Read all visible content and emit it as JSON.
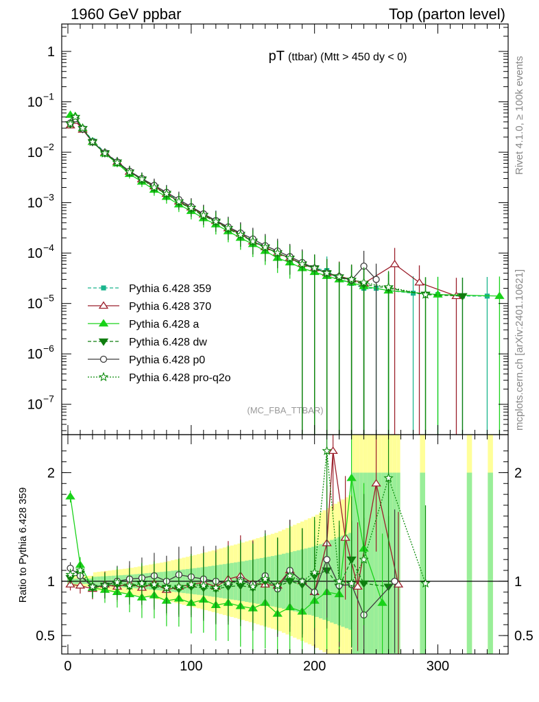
{
  "chart_data": [
    {
      "type": "line",
      "panel": "main",
      "header_left": "1960 GeV ppbar",
      "header_right": "Top (parton level)",
      "title_main": "pT",
      "title_sub": "(ttbar) (Mtt > 450 dy < 0)",
      "watermark": "(MC_FBA_TTBAR)",
      "side_label_top": "Rivet 4.1.0, ≥ 100k events",
      "side_label_bottom": "mcplots.cern.ch [arXiv:2401.10621]",
      "yscale": "log",
      "xlim": [
        -5,
        357
      ],
      "ylim": [
        2.5e-08,
        3.5
      ],
      "yticks": [
        {
          "v": 1e-07,
          "base": "10",
          "exp": "−7"
        },
        {
          "v": 1e-06,
          "base": "10",
          "exp": "−6"
        },
        {
          "v": 1e-05,
          "base": "10",
          "exp": "−5"
        },
        {
          "v": 0.0001,
          "base": "10",
          "exp": "−4"
        },
        {
          "v": 0.001,
          "base": "10",
          "exp": "−3"
        },
        {
          "v": 0.01,
          "base": "10",
          "exp": "−2"
        },
        {
          "v": 0.1,
          "base": "10",
          "exp": "−1"
        },
        {
          "v": 1,
          "base": "1",
          "exp": ""
        }
      ],
      "series": [
        {
          "name": "Pythia 6.428 359",
          "color": "#19b58c",
          "marker": "square",
          "dash": "5,3",
          "x": [
            2,
            6,
            12,
            20,
            30,
            40,
            50,
            60,
            70,
            80,
            90,
            100,
            110,
            120,
            130,
            140,
            150,
            160,
            170,
            180,
            190,
            200,
            210,
            220,
            230,
            240,
            250,
            260,
            280,
            300,
            320,
            340
          ],
          "y": [
            0.035,
            0.045,
            0.03,
            0.017,
            0.01,
            0.0065,
            0.0042,
            0.003,
            0.0021,
            0.0016,
            0.0011,
            0.0008,
            0.00058,
            0.00045,
            0.00032,
            0.00024,
            0.00018,
            0.00013,
            0.0001,
            8e-05,
            6e-05,
            5e-05,
            4.5e-05,
            3e-05,
            2.5e-05,
            2e-05,
            2e-05,
            1.8e-05,
            1.6e-05,
            1.5e-05,
            1.4e-05,
            1.4e-05
          ]
        },
        {
          "name": "Pythia 6.428 370",
          "color": "#9b1e2a",
          "marker": "triangle-open",
          "dash": "",
          "x": [
            2,
            6,
            12,
            20,
            30,
            40,
            50,
            60,
            70,
            80,
            90,
            100,
            110,
            120,
            130,
            140,
            150,
            160,
            170,
            180,
            190,
            200,
            210,
            220,
            230,
            240,
            265,
            285,
            315
          ],
          "y": [
            0.034,
            0.042,
            0.028,
            0.016,
            0.0098,
            0.0064,
            0.0041,
            0.0029,
            0.0021,
            0.0015,
            0.00105,
            0.0008,
            0.00058,
            0.00043,
            0.00031,
            0.00024,
            0.00017,
            0.00013,
            0.0001,
            8e-05,
            6.1e-05,
            5e-05,
            4e-05,
            3.5e-05,
            3e-05,
            2.5e-05,
            6e-05,
            2.6e-05,
            1.4e-05
          ]
        },
        {
          "name": "Pythia 6.428 a",
          "color": "#19d219",
          "marker": "triangle",
          "dash": "",
          "x": [
            2,
            6,
            12,
            20,
            30,
            40,
            50,
            60,
            70,
            80,
            90,
            100,
            110,
            120,
            130,
            140,
            150,
            160,
            170,
            180,
            190,
            200,
            210,
            220,
            230,
            240,
            260,
            300,
            350
          ],
          "y": [
            0.055,
            0.052,
            0.03,
            0.016,
            0.0094,
            0.006,
            0.0037,
            0.0026,
            0.0018,
            0.0013,
            0.00092,
            0.00068,
            0.00049,
            0.00037,
            0.00027,
            0.0002,
            0.00015,
            0.00011,
            8e-05,
            6.5e-05,
            5e-05,
            4.2e-05,
            3.5e-05,
            3e-05,
            2.6e-05,
            2.2e-05,
            1.8e-05,
            1.5e-05,
            1.4e-05
          ]
        },
        {
          "name": "Pythia 6.428 dw",
          "color": "#0f7d0f",
          "marker": "triangle-down",
          "dash": "5,3",
          "x": [
            2,
            6,
            12,
            20,
            30,
            40,
            50,
            60,
            70,
            80,
            90,
            100,
            110,
            120,
            130,
            140,
            150,
            160,
            170,
            180,
            190,
            200,
            210,
            220,
            230,
            240,
            260,
            290,
            320
          ],
          "y": [
            0.036,
            0.048,
            0.029,
            0.016,
            0.0096,
            0.0063,
            0.004,
            0.0029,
            0.002,
            0.0015,
            0.00102,
            0.00076,
            0.00055,
            0.00042,
            0.0003,
            0.00023,
            0.00017,
            0.00013,
            0.0001,
            7.8e-05,
            6e-05,
            5e-05,
            4e-05,
            3.3e-05,
            2.8e-05,
            2.4e-05,
            2e-05,
            1.5e-05,
            1.4e-05
          ]
        },
        {
          "name": "Pythia 6.428 p0",
          "color": "#3c3c3c",
          "marker": "circle-open",
          "dash": "",
          "x": [
            2,
            6,
            12,
            20,
            30,
            40,
            50,
            60,
            70,
            80,
            90,
            100,
            110,
            120,
            130,
            140,
            150,
            160,
            170,
            180,
            190,
            200,
            210,
            220,
            230,
            240,
            250
          ],
          "y": [
            0.038,
            0.046,
            0.029,
            0.016,
            0.0097,
            0.0064,
            0.0042,
            0.003,
            0.0022,
            0.0016,
            0.00115,
            0.00083,
            0.0006,
            0.00044,
            0.00033,
            0.00025,
            0.00019,
            0.00014,
            0.00011,
            8.5e-05,
            6.5e-05,
            5e-05,
            4e-05,
            3.4e-05,
            2.9e-05,
            5.5e-05,
            3e-05
          ]
        },
        {
          "name": "Pythia 6.428 pro-q2o",
          "color": "#0a8a0a",
          "marker": "star-open",
          "dash": "2,2",
          "x": [
            2,
            6,
            12,
            20,
            30,
            40,
            50,
            60,
            70,
            80,
            90,
            100,
            110,
            120,
            130,
            140,
            150,
            160,
            170,
            180,
            190,
            200,
            210,
            220,
            230,
            240,
            260,
            290
          ],
          "y": [
            0.037,
            0.05,
            0.03,
            0.016,
            0.0095,
            0.0062,
            0.004,
            0.0029,
            0.002,
            0.0015,
            0.00105,
            0.00078,
            0.00056,
            0.00042,
            0.00031,
            0.00023,
            0.00017,
            0.00013,
            0.0001,
            7.9e-05,
            6e-05,
            5e-05,
            4e-05,
            3.4e-05,
            3e-05,
            2.6e-05,
            2.1e-05,
            1.5e-05
          ]
        }
      ]
    },
    {
      "type": "line",
      "panel": "ratio",
      "ylabel": "Ratio to Pythia 6.428 359",
      "xlim": [
        -5,
        357
      ],
      "ylim": [
        0.33,
        2.35
      ],
      "reference": 1,
      "yticks": [
        {
          "v": 0.5,
          "label": "0.5"
        },
        {
          "v": 1,
          "label": "1"
        },
        {
          "v": 2,
          "label": "2"
        }
      ],
      "xticks": [
        {
          "v": 0,
          "label": "0"
        },
        {
          "v": 100,
          "label": "100"
        },
        {
          "v": 200,
          "label": "200"
        },
        {
          "v": 300,
          "label": "300"
        }
      ],
      "band_outer_color": "#ffff99",
      "band_inner_color": "#99ee99",
      "bands": [
        {
          "x": 20,
          "outer": 0.08,
          "inner": 0.04
        },
        {
          "x": 50,
          "outer": 0.12,
          "inner": 0.06
        },
        {
          "x": 80,
          "outer": 0.18,
          "inner": 0.09
        },
        {
          "x": 110,
          "outer": 0.26,
          "inner": 0.13
        },
        {
          "x": 140,
          "outer": 0.35,
          "inner": 0.18
        },
        {
          "x": 170,
          "outer": 0.45,
          "inner": 0.24
        },
        {
          "x": 200,
          "outer": 0.6,
          "inner": 0.32
        },
        {
          "x": 230,
          "outer": 0.8,
          "inner": 0.45
        }
      ],
      "series": [
        {
          "name": "Pythia 6.428 370",
          "color": "#9b1e2a",
          "marker": "triangle-open",
          "dash": "",
          "x": [
            2,
            10,
            20,
            30,
            40,
            50,
            60,
            70,
            80,
            90,
            100,
            110,
            120,
            130,
            140,
            150,
            160,
            170,
            180,
            190,
            200,
            210,
            215,
            225,
            235,
            250,
            268
          ],
          "y": [
            0.97,
            0.96,
            0.93,
            0.97,
            0.95,
            0.98,
            0.94,
            0.98,
            0.92,
            0.95,
            0.97,
            0.99,
            0.95,
            1.02,
            1.05,
            0.98,
            0.97,
            0.96,
            1.1,
            1.0,
            0.9,
            1.35,
            2.2,
            1.4,
            0.95,
            1.9,
            0.97
          ]
        },
        {
          "name": "Pythia 6.428 a",
          "color": "#19d219",
          "marker": "triangle",
          "dash": "",
          "x": [
            2,
            10,
            20,
            30,
            40,
            50,
            60,
            70,
            80,
            90,
            100,
            110,
            120,
            130,
            140,
            150,
            160,
            170,
            180,
            190,
            200,
            210,
            220,
            230,
            240,
            255
          ],
          "y": [
            1.78,
            1.15,
            0.94,
            0.92,
            0.9,
            0.88,
            0.85,
            0.87,
            0.82,
            0.84,
            0.8,
            0.83,
            0.78,
            0.8,
            0.77,
            0.75,
            0.8,
            0.7,
            0.76,
            0.72,
            0.82,
            0.9,
            0.88,
            1.95,
            1.3,
            0.8
          ]
        },
        {
          "name": "Pythia 6.428 dw",
          "color": "#0f7d0f",
          "marker": "triangle-down",
          "dash": "5,3",
          "x": [
            2,
            10,
            20,
            30,
            40,
            50,
            60,
            70,
            80,
            90,
            100,
            110,
            120,
            130,
            140,
            150,
            160,
            170,
            180,
            190,
            200,
            210,
            220,
            230,
            240,
            260
          ],
          "y": [
            1.03,
            1.07,
            0.94,
            0.96,
            0.97,
            0.95,
            0.97,
            0.95,
            0.94,
            0.93,
            0.95,
            0.94,
            0.93,
            0.95,
            0.96,
            0.94,
            1.0,
            0.95,
            1.0,
            0.97,
            1.05,
            1.1,
            0.95,
            1.2,
            0.98,
            0.95
          ]
        },
        {
          "name": "Pythia 6.428 p0",
          "color": "#3c3c3c",
          "marker": "circle-open",
          "dash": "",
          "x": [
            2,
            10,
            20,
            30,
            40,
            50,
            60,
            70,
            80,
            90,
            100,
            110,
            120,
            130,
            140,
            150,
            160,
            170,
            180,
            190,
            200,
            210,
            220,
            230,
            240,
            265
          ],
          "y": [
            1.12,
            1.05,
            0.95,
            0.96,
            1.0,
            1.02,
            1.03,
            1.05,
            1.0,
            1.06,
            1.04,
            1.02,
            1.0,
            0.98,
            1.01,
            0.97,
            1.05,
            0.93,
            1.1,
            1.0,
            0.9,
            1.2,
            0.96,
            0.97,
            0.69,
            1.0
          ]
        },
        {
          "name": "Pythia 6.428 pro-q2o",
          "color": "#0a8a0a",
          "marker": "star-open",
          "dash": "2,2",
          "x": [
            2,
            10,
            20,
            30,
            40,
            50,
            60,
            70,
            80,
            90,
            100,
            110,
            120,
            130,
            140,
            150,
            160,
            170,
            180,
            190,
            200,
            210,
            220,
            230,
            240,
            260,
            290
          ],
          "y": [
            1.06,
            1.1,
            0.95,
            0.96,
            0.99,
            0.96,
            0.98,
            0.97,
            0.94,
            0.95,
            0.97,
            0.96,
            0.94,
            0.98,
            1.0,
            0.95,
            1.02,
            0.96,
            1.05,
            1.0,
            1.08,
            2.2,
            1.0,
            0.98,
            1.2,
            1.95,
            0.98
          ]
        }
      ]
    }
  ]
}
